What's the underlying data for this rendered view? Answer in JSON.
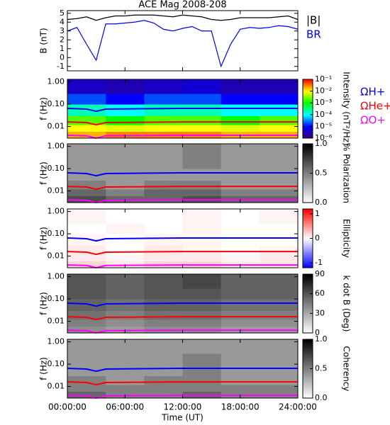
{
  "chart_data": [
    {
      "type": "line",
      "title": "ACE Mag 2008-208",
      "y_label": "B (nT)",
      "xlim": [
        0,
        24
      ],
      "x": [
        0,
        1,
        2,
        3,
        4,
        5,
        6,
        7,
        8,
        9,
        10,
        11,
        12,
        13,
        14,
        15,
        16,
        17,
        18,
        19,
        20,
        21,
        22,
        23,
        24
      ],
      "series": [
        {
          "name": "|B|",
          "color": "#000000",
          "values": [
            4.3,
            4.4,
            4.6,
            4.2,
            4.5,
            4.7,
            4.7,
            4.8,
            4.8,
            4.8,
            4.7,
            4.6,
            4.8,
            4.7,
            4.6,
            4.3,
            4.2,
            4.3,
            4.5,
            4.5,
            4.5,
            4.5,
            4.6,
            4.7,
            4.3
          ]
        },
        {
          "name": "BR",
          "color": "#0000ff",
          "values": [
            3.0,
            3.4,
            1.5,
            -0.3,
            3.8,
            3.8,
            3.9,
            4.0,
            4.2,
            3.9,
            3.2,
            3.0,
            3.3,
            3.5,
            3.0,
            3.0,
            -1.0,
            1.5,
            3.2,
            3.4,
            3.3,
            3.4,
            3.6,
            3.5,
            3.2
          ]
        }
      ],
      "ylim": [
        -1.5,
        5.3
      ],
      "yticks": [
        -1,
        0,
        1,
        2,
        3,
        4,
        5
      ]
    },
    {
      "type": "heatmap",
      "y_label": "f (Hz)",
      "xlim": [
        0,
        24
      ],
      "log_y": true,
      "ylim": [
        0.003,
        1.3
      ],
      "yticks": [
        {
          "value": 1,
          "label": "1.00"
        },
        {
          "value": 0.1,
          "label": "0.10"
        },
        {
          "value": 0.01,
          "label": "0.01"
        }
      ],
      "time_bins": [
        0,
        4,
        8,
        12,
        16,
        20,
        24
      ],
      "freq_bins": [
        0.003,
        0.006,
        0.012,
        0.03,
        0.1,
        0.3,
        1.3
      ],
      "z": [
        [
          0.02,
          0.03,
          0.03,
          0.03,
          0.02,
          0.02
        ],
        [
          0.01,
          0.008,
          0.01,
          0.01,
          0.008,
          0.01
        ],
        [
          0.002,
          0.001,
          0.002,
          0.002,
          0.001,
          0.002
        ],
        [
          0.0002,
          0.0001,
          0.0002,
          0.0002,
          0.0001,
          0.0001
        ],
        [
          2e-05,
          1e-05,
          2e-05,
          2e-05,
          1e-05,
          1e-05
        ],
        [
          4e-06,
          3e-06,
          4e-06,
          5e-06,
          3e-06,
          3e-06
        ]
      ],
      "colorbar": {
        "label": "Intensity (nT²/Hz)",
        "log": true,
        "colormap": "rainbow",
        "lim": [
          1e-06,
          0.1
        ],
        "ticks": [
          {
            "value": 0.1,
            "label": "10⁻¹"
          },
          {
            "value": 0.01,
            "label": "10⁻²"
          },
          {
            "value": 0.001,
            "label": "10⁻³"
          },
          {
            "value": 0.0001,
            "label": "10⁻⁴"
          },
          {
            "value": 1e-05,
            "label": "10⁻⁵"
          },
          {
            "value": 1e-06,
            "label": "10⁻⁶"
          }
        ]
      },
      "gyro_x": [
        0,
        2,
        3,
        4,
        12,
        18,
        24
      ],
      "series": [
        {
          "name": "ΩH+",
          "color": "#0000ff",
          "values": [
            0.065,
            0.06,
            0.048,
            0.06,
            0.065,
            0.065,
            0.065
          ]
        },
        {
          "name": "ΩHe+",
          "color": "#ff0000",
          "values": [
            0.016,
            0.015,
            0.012,
            0.015,
            0.016,
            0.016,
            0.016
          ]
        },
        {
          "name": "ΩO+",
          "color": "#ff00ff",
          "values": [
            0.004,
            0.0038,
            0.003,
            0.0038,
            0.004,
            0.004,
            0.004
          ]
        }
      ]
    },
    {
      "type": "heatmap",
      "y_label": "f (Hz)",
      "xlim": [
        0,
        24
      ],
      "log_y": true,
      "ylim": [
        0.003,
        1.3
      ],
      "yticks": [
        {
          "value": 1,
          "label": "1.00"
        },
        {
          "value": 0.1,
          "label": "0.10"
        },
        {
          "value": 0.01,
          "label": "0.01"
        }
      ],
      "time_bins": [
        0,
        4,
        8,
        12,
        16,
        20,
        24
      ],
      "freq_bins": [
        0.003,
        0.006,
        0.012,
        0.03,
        0.1,
        0.3,
        1.3
      ],
      "z": [
        [
          0.7,
          0.6,
          0.6,
          0.7,
          0.6,
          0.6
        ],
        [
          0.6,
          0.5,
          0.6,
          0.6,
          0.5,
          0.5
        ],
        [
          0.5,
          0.4,
          0.5,
          0.5,
          0.4,
          0.4
        ],
        [
          0.4,
          0.4,
          0.4,
          0.4,
          0.4,
          0.4
        ],
        [
          0.4,
          0.4,
          0.4,
          0.5,
          0.4,
          0.4
        ],
        [
          0.4,
          0.4,
          0.4,
          0.5,
          0.4,
          0.4
        ]
      ],
      "colorbar": {
        "label": "% Polarization",
        "colormap": "gray_r",
        "lim": [
          0,
          1
        ],
        "ticks": [
          {
            "value": 1,
            "label": "1.0"
          },
          0.5,
          {
            "value": 0,
            "label": "0.0"
          }
        ]
      },
      "gyro_x": [
        0,
        2,
        3,
        4,
        12,
        18,
        24
      ],
      "series": [
        {
          "color": "#0000ff",
          "values": [
            0.065,
            0.06,
            0.048,
            0.06,
            0.065,
            0.065,
            0.065
          ]
        },
        {
          "color": "#ff0000",
          "values": [
            0.016,
            0.015,
            0.012,
            0.015,
            0.016,
            0.016,
            0.016
          ]
        },
        {
          "color": "#ff00ff",
          "values": [
            0.004,
            0.0038,
            0.003,
            0.0038,
            0.004,
            0.004,
            0.004
          ]
        }
      ]
    },
    {
      "type": "heatmap",
      "y_label": "f (Hz)",
      "xlim": [
        0,
        24
      ],
      "log_y": true,
      "ylim": [
        0.003,
        1.3
      ],
      "yticks": [
        {
          "value": 1,
          "label": "1.00"
        },
        {
          "value": 0.1,
          "label": "0.10"
        },
        {
          "value": 0.01,
          "label": "0.01"
        }
      ],
      "time_bins": [
        0,
        4,
        8,
        12,
        16,
        20,
        24
      ],
      "freq_bins": [
        0.003,
        0.006,
        0.012,
        0.03,
        0.1,
        0.3,
        1.3
      ],
      "z": [
        [
          0.2,
          0.1,
          0.2,
          0.2,
          0.1,
          0.1
        ],
        [
          0.1,
          0.05,
          0.1,
          0.1,
          0.05,
          0.1
        ],
        [
          0.1,
          0,
          0.1,
          0.05,
          0,
          0.05
        ],
        [
          0.05,
          0,
          0.05,
          0.05,
          0,
          0
        ],
        [
          0,
          0.05,
          0,
          0.05,
          0,
          0
        ],
        [
          0.05,
          0,
          0,
          0.05,
          0,
          0.05
        ]
      ],
      "colorbar": {
        "label": "Ellipticity",
        "colormap": "bwr",
        "lim": [
          -1.2,
          1.2
        ],
        "ticks": [
          1,
          0,
          -1
        ]
      },
      "gyro_x": [
        0,
        2,
        3,
        4,
        12,
        18,
        24
      ],
      "series": [
        {
          "color": "#0000ff",
          "values": [
            0.065,
            0.06,
            0.048,
            0.06,
            0.065,
            0.065,
            0.065
          ]
        },
        {
          "color": "#ff0000",
          "values": [
            0.016,
            0.015,
            0.012,
            0.015,
            0.016,
            0.016,
            0.016
          ]
        },
        {
          "color": "#ff00ff",
          "values": [
            0.004,
            0.0038,
            0.003,
            0.0038,
            0.004,
            0.004,
            0.004
          ]
        }
      ]
    },
    {
      "type": "heatmap",
      "y_label": "f (Hz)",
      "xlim": [
        0,
        24
      ],
      "log_y": true,
      "ylim": [
        0.003,
        1.3
      ],
      "yticks": [
        {
          "value": 1,
          "label": "1.00"
        },
        {
          "value": 0.1,
          "label": "0.10"
        },
        {
          "value": 0.01,
          "label": "0.01"
        }
      ],
      "time_bins": [
        0,
        4,
        8,
        12,
        16,
        20,
        24
      ],
      "freq_bins": [
        0.003,
        0.006,
        0.012,
        0.03,
        0.1,
        0.3,
        1.3
      ],
      "z": [
        [
          40,
          35,
          40,
          40,
          35,
          35
        ],
        [
          45,
          40,
          45,
          45,
          40,
          40
        ],
        [
          50,
          45,
          50,
          50,
          45,
          45
        ],
        [
          55,
          50,
          55,
          55,
          50,
          50
        ],
        [
          60,
          55,
          60,
          60,
          55,
          55
        ],
        [
          60,
          55,
          60,
          65,
          55,
          55
        ]
      ],
      "colorbar": {
        "label": "k dot B (Deg)",
        "colormap": "gray_r",
        "lim": [
          0,
          90
        ],
        "ticks": [
          90,
          60,
          30,
          0
        ]
      },
      "gyro_x": [
        0,
        2,
        3,
        4,
        12,
        18,
        24
      ],
      "series": [
        {
          "color": "#0000ff",
          "values": [
            0.065,
            0.06,
            0.048,
            0.06,
            0.065,
            0.065,
            0.065
          ]
        },
        {
          "color": "#ff0000",
          "values": [
            0.016,
            0.015,
            0.012,
            0.015,
            0.016,
            0.016,
            0.016
          ]
        },
        {
          "color": "#ff00ff",
          "values": [
            0.004,
            0.0038,
            0.003,
            0.0038,
            0.004,
            0.004,
            0.004
          ]
        }
      ]
    },
    {
      "type": "heatmap",
      "y_label": "f (Hz)",
      "xlim": [
        0,
        24
      ],
      "log_y": true,
      "ylim": [
        0.003,
        1.3
      ],
      "yticks": [
        {
          "value": 1,
          "label": "1.00"
        },
        {
          "value": 0.1,
          "label": "0.10"
        },
        {
          "value": 0.01,
          "label": "0.01"
        }
      ],
      "time_bins": [
        0,
        4,
        8,
        12,
        16,
        20,
        24
      ],
      "freq_bins": [
        0.003,
        0.006,
        0.012,
        0.03,
        0.1,
        0.3,
        1.3
      ],
      "z": [
        [
          0.6,
          0.5,
          0.5,
          0.6,
          0.5,
          0.5
        ],
        [
          0.5,
          0.5,
          0.5,
          0.5,
          0.5,
          0.5
        ],
        [
          0.5,
          0.4,
          0.5,
          0.5,
          0.4,
          0.4
        ],
        [
          0.4,
          0.4,
          0.4,
          0.5,
          0.4,
          0.4
        ],
        [
          0.4,
          0.4,
          0.4,
          0.5,
          0.4,
          0.4
        ],
        [
          0.4,
          0.4,
          0.4,
          0.4,
          0.4,
          0.4
        ]
      ],
      "colorbar": {
        "label": "Coherency",
        "colormap": "gray_r",
        "lim": [
          0,
          1
        ],
        "ticks": [
          {
            "value": 1,
            "label": "1.0"
          },
          0.5,
          {
            "value": 0,
            "label": "0.0"
          }
        ]
      },
      "gyro_x": [
        0,
        2,
        3,
        4,
        12,
        18,
        24
      ],
      "series": [
        {
          "color": "#0000ff",
          "values": [
            0.065,
            0.06,
            0.048,
            0.06,
            0.065,
            0.065,
            0.065
          ]
        },
        {
          "color": "#ff0000",
          "values": [
            0.016,
            0.015,
            0.012,
            0.015,
            0.016,
            0.016,
            0.016
          ]
        },
        {
          "color": "#ff00ff",
          "values": [
            0.004,
            0.0038,
            0.003,
            0.0038,
            0.004,
            0.004,
            0.004
          ]
        }
      ],
      "x_label": "Time (UT)",
      "xticks": [
        {
          "value": 0,
          "label": "00:00:00"
        },
        {
          "value": 6,
          "label": "06:00:00"
        },
        {
          "value": 12,
          "label": "12:00:00"
        },
        {
          "value": 18,
          "label": "18:00:00"
        },
        {
          "value": 24,
          "label": "24:00:00"
        }
      ]
    }
  ]
}
